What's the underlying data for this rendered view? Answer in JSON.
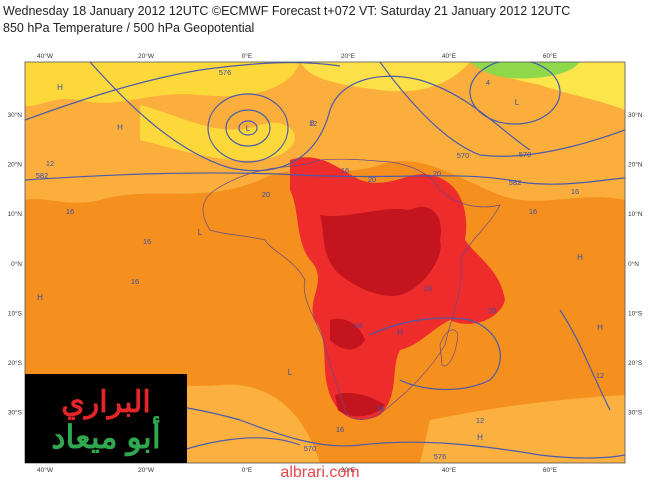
{
  "header": {
    "line1": "Wednesday 18 January 2012 12UTC ©ECMWF Forecast t+072 VT: Saturday 21 January 2012 12UTC",
    "line2": "850 hPa Temperature / 500 hPa Geopotential"
  },
  "map": {
    "lon_labels": [
      "40°W",
      "20°W",
      "0°E",
      "20°E",
      "40°E",
      "60°E"
    ],
    "lat_labels": [
      "30°N",
      "20°N",
      "10°N",
      "0°N",
      "10°S",
      "20°S",
      "30°S"
    ],
    "contour_labels": [
      "576",
      "570",
      "570",
      "582",
      "582",
      "12",
      "16",
      "16",
      "16",
      "12",
      "20",
      "16",
      "20",
      "20",
      "16",
      "16",
      "24",
      "24",
      "20",
      "24",
      "16",
      "12",
      "12",
      "576",
      "570",
      "8",
      "4"
    ],
    "pressure_marks": [
      "L",
      "H",
      "H",
      "H",
      "L",
      "H",
      "H",
      "L",
      "H",
      "H",
      "H",
      "L"
    ]
  },
  "logo": {
    "line1": "البراري",
    "line2": "أبو ميعاد"
  },
  "watermark": "albrari.com"
}
